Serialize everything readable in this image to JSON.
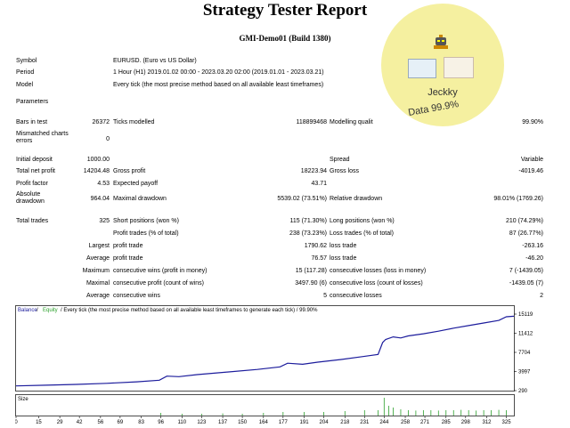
{
  "header": {
    "title": "Strategy Tester Report",
    "subtitle": "GMI-Demo01 (Build 1380)"
  },
  "badge": {
    "name": "Jeckky",
    "data_quality": "Data 99.9%"
  },
  "info": {
    "symbol_label": "Symbol",
    "symbol": "EURUSD. (Euro vs US Dollar)",
    "period_label": "Period",
    "period": "1 Hour (H1) 2019.01.02 00:00 - 2023.03.20 02:00 (2019.01.01 - 2023.03.21)",
    "model_label": "Model",
    "model": "Every tick (the most precise method based on all available least timeframes)",
    "parameters_label": "Parameters"
  },
  "stats": {
    "bars_label": "Bars in test",
    "bars": "26372",
    "ticks_label": "Ticks modelled",
    "ticks": "118899468",
    "quality_label": "Modelling qualit",
    "quality": "99.90%",
    "mismatch_label_1": "Mismatched charts",
    "mismatch_label_2": "errors",
    "mismatch": "0",
    "deposit_label": "Initial deposit",
    "deposit": "1000.00",
    "spread_label": "Spread",
    "spread": "Variable",
    "net_label": "Total net profit",
    "net": "14204.48",
    "gross_profit_label": "Gross profit",
    "gross_profit": "18223.94",
    "gross_loss_label": "Gross loss",
    "gross_loss": "-4019.46",
    "pf_label": "Profit factor",
    "pf": "4.53",
    "payoff_label": "Expected payoff",
    "payoff": "43.71",
    "absdd_label_1": "Absolute",
    "absdd_label_2": "drawdown",
    "absdd": "964.04",
    "maxdd_label": "Maximal drawdown",
    "maxdd": "5539.02 (73.51%)",
    "reldd_label": "Relative drawdown",
    "reldd": "98.01% (1769.26)",
    "trades_label": "Total trades",
    "trades": "325",
    "short_label": "Short positions (won %)",
    "short": "115 (71.30%)",
    "long_label": "Long positions (won %)",
    "long": "210 (74.29%)",
    "ptrades_label": "Profit trades (% of total)",
    "ptrades": "238 (73.23%)",
    "ltrades_label": "Loss trades (% of total)",
    "ltrades": "87 (26.77%)",
    "largest_label": "Largest",
    "largest_profit_label": "profit trade",
    "largest_profit": "1790.62",
    "largest_loss_label": "loss trade",
    "largest_loss": "-263.16",
    "average_label": "Average",
    "average_profit_label": "profit trade",
    "average_profit": "76.57",
    "average_loss_label": "loss trade",
    "average_loss": "-46.20",
    "maximum_label": "Maximum",
    "max_wins_label": "consecutive wins (profit in money)",
    "max_wins": "15 (117.28)",
    "max_losses_label": "consecutive losses (loss in money)",
    "max_losses": "7 (-1439.05)",
    "maximal_label": "Maximal",
    "maximal_profit_label": "consecutive profit (count of wins)",
    "maximal_profit": "3497.90 (6)",
    "maximal_loss_label": "consecutive loss (count of losses)",
    "maximal_loss": "-1439.05 (7)",
    "avg_cons_label": "Average",
    "avg_wins_label": "consecutive wins",
    "avg_wins": "5",
    "avg_losses_label": "consecutive losses",
    "avg_losses": "2"
  },
  "chart_data": {
    "type": "line",
    "legend": {
      "balance": "Balance",
      "sep": " / ",
      "equity": "Equity",
      "rest": " / Every tick (the most precise method based on all available least timeframes to generate each tick) / 99.90%"
    },
    "colors": {
      "balance": "#1c1c9c",
      "equity": "#2ca02c"
    },
    "ylim": [
      290,
      15119
    ],
    "yticks": [
      "15119",
      "11412",
      "7704",
      "3997",
      "290"
    ],
    "xlim": [
      0,
      330
    ],
    "xticks": [
      0,
      15,
      29,
      42,
      56,
      69,
      83,
      96,
      110,
      123,
      137,
      150,
      164,
      177,
      191,
      204,
      218,
      231,
      244,
      258,
      271,
      285,
      298,
      312,
      325
    ],
    "size_label": "Size",
    "balance": {
      "x": [
        0,
        20,
        40,
        60,
        80,
        95,
        100,
        108,
        120,
        140,
        160,
        175,
        180,
        190,
        200,
        215,
        230,
        240,
        243,
        245,
        250,
        255,
        260,
        270,
        280,
        290,
        300,
        310,
        320,
        325,
        330
      ],
      "y": [
        1200,
        1350,
        1500,
        1700,
        2000,
        2300,
        3100,
        3000,
        3400,
        3900,
        4400,
        4900,
        5600,
        5400,
        5800,
        6300,
        6900,
        7300,
        9600,
        10200,
        10700,
        10500,
        10900,
        11300,
        11800,
        12400,
        12900,
        13400,
        13900,
        14600,
        14700
      ]
    },
    "size_bars": {
      "x": [
        96,
        110,
        123,
        137,
        150,
        164,
        177,
        191,
        204,
        218,
        231,
        240,
        244,
        247,
        250,
        255,
        260,
        265,
        270,
        275,
        280,
        285,
        290,
        295,
        300,
        305,
        310,
        315,
        320,
        325
      ],
      "values": [
        0.15,
        0.1,
        0.1,
        0.12,
        0.1,
        0.15,
        0.2,
        0.2,
        0.2,
        0.25,
        0.3,
        0.3,
        1.0,
        0.55,
        0.45,
        0.35,
        0.3,
        0.28,
        0.3,
        0.3,
        0.28,
        0.3,
        0.3,
        0.32,
        0.3,
        0.28,
        0.3,
        0.3,
        0.32,
        0.3
      ]
    }
  }
}
